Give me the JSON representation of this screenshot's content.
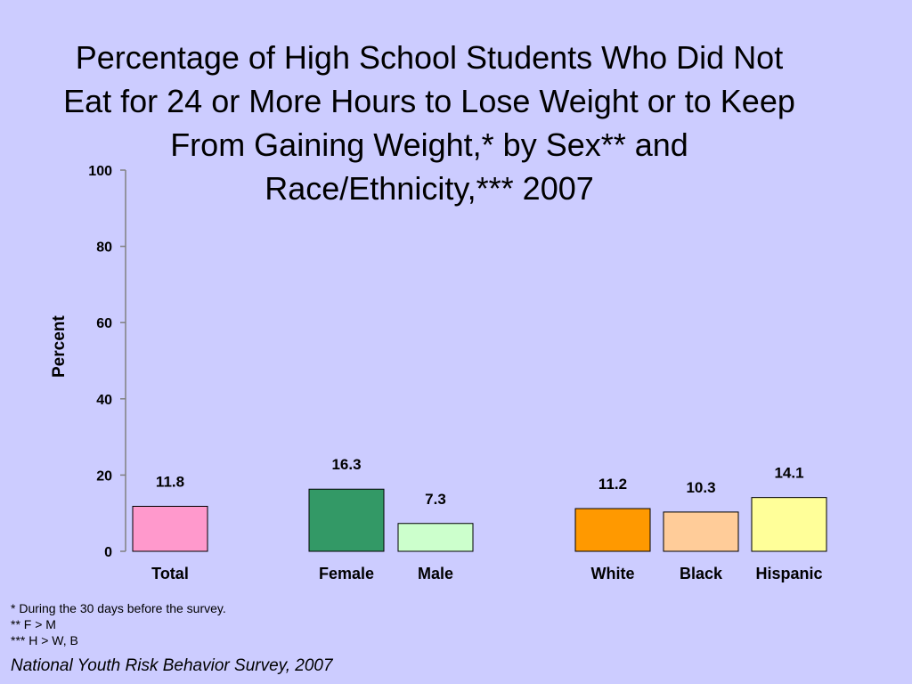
{
  "title_lines": [
    "Percentage of High School Students Who Did Not",
    "Eat for 24 or More Hours to Lose Weight or to Keep",
    "From Gaining Weight,* by Sex** and",
    "Race/Ethnicity,*** 2007"
  ],
  "chart_data": {
    "type": "bar",
    "title": "Percentage of High School Students Who Did Not Eat for 24 or More Hours to Lose Weight or to Keep From Gaining Weight,* by Sex** and Race/Ethnicity,*** 2007",
    "ylabel": "Percent",
    "xlabel": "",
    "ylim": [
      0,
      100
    ],
    "yticks": [
      0,
      20,
      40,
      60,
      80,
      100
    ],
    "grid": false,
    "categories": [
      "Total",
      "Female",
      "Male",
      "White",
      "Black",
      "Hispanic"
    ],
    "values": [
      11.8,
      16.3,
      7.3,
      11.2,
      10.3,
      14.1
    ],
    "value_labels": [
      "11.8",
      "16.3",
      "7.3",
      "11.2",
      "10.3",
      "14.1"
    ],
    "colors": [
      "#ff99cc",
      "#339966",
      "#ccffcc",
      "#ff9900",
      "#ffcc99",
      "#ffff99"
    ],
    "groups": [
      [
        "Total"
      ],
      [
        "Female",
        "Male"
      ],
      [
        "White",
        "Black",
        "Hispanic"
      ]
    ]
  },
  "footnotes": [
    "* During the 30 days before the survey.",
    "** F > M",
    "*** H > W, B"
  ],
  "source": "National Youth Risk Behavior Survey, 2007",
  "background_color": "#ccccff"
}
